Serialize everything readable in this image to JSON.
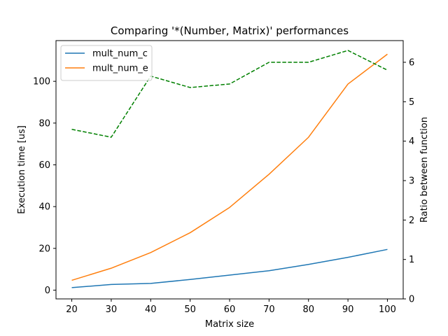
{
  "chart_data": {
    "type": "line",
    "title": "Comparing '*(Number, Matrix)' performances",
    "xlabel": "Matrix size",
    "ylabel": "Execution time [us]",
    "y2label": "Ratio between function",
    "x": [
      20,
      30,
      40,
      50,
      60,
      70,
      80,
      90,
      100
    ],
    "xlim": [
      16,
      104
    ],
    "ylim": [
      -4.2,
      119.5
    ],
    "y2lim": [
      0,
      6.55
    ],
    "xticks": [
      20,
      30,
      40,
      50,
      60,
      70,
      80,
      90,
      100
    ],
    "yticks": [
      0,
      20,
      40,
      60,
      80,
      100
    ],
    "y2ticks": [
      0,
      1,
      2,
      3,
      4,
      5,
      6
    ],
    "grid": false,
    "legend_position": "top-left",
    "series": [
      {
        "name": "mult_num_c",
        "axis": "left",
        "color": "#1f77b4",
        "style": "solid",
        "values": [
          1.2,
          2.7,
          3.2,
          5.1,
          7.2,
          9.3,
          12.3,
          15.7,
          19.5
        ]
      },
      {
        "name": "mult_num_e",
        "axis": "left",
        "color": "#ff7f0e",
        "style": "solid",
        "values": [
          4.7,
          10.5,
          18.0,
          27.5,
          39.6,
          55.5,
          73.2,
          98.7,
          113.0
        ]
      },
      {
        "axis": "right",
        "color": "#008000",
        "style": "dashed",
        "values": [
          4.3,
          4.1,
          5.65,
          5.36,
          5.45,
          6.0,
          6.0,
          6.3,
          5.8
        ]
      }
    ]
  }
}
